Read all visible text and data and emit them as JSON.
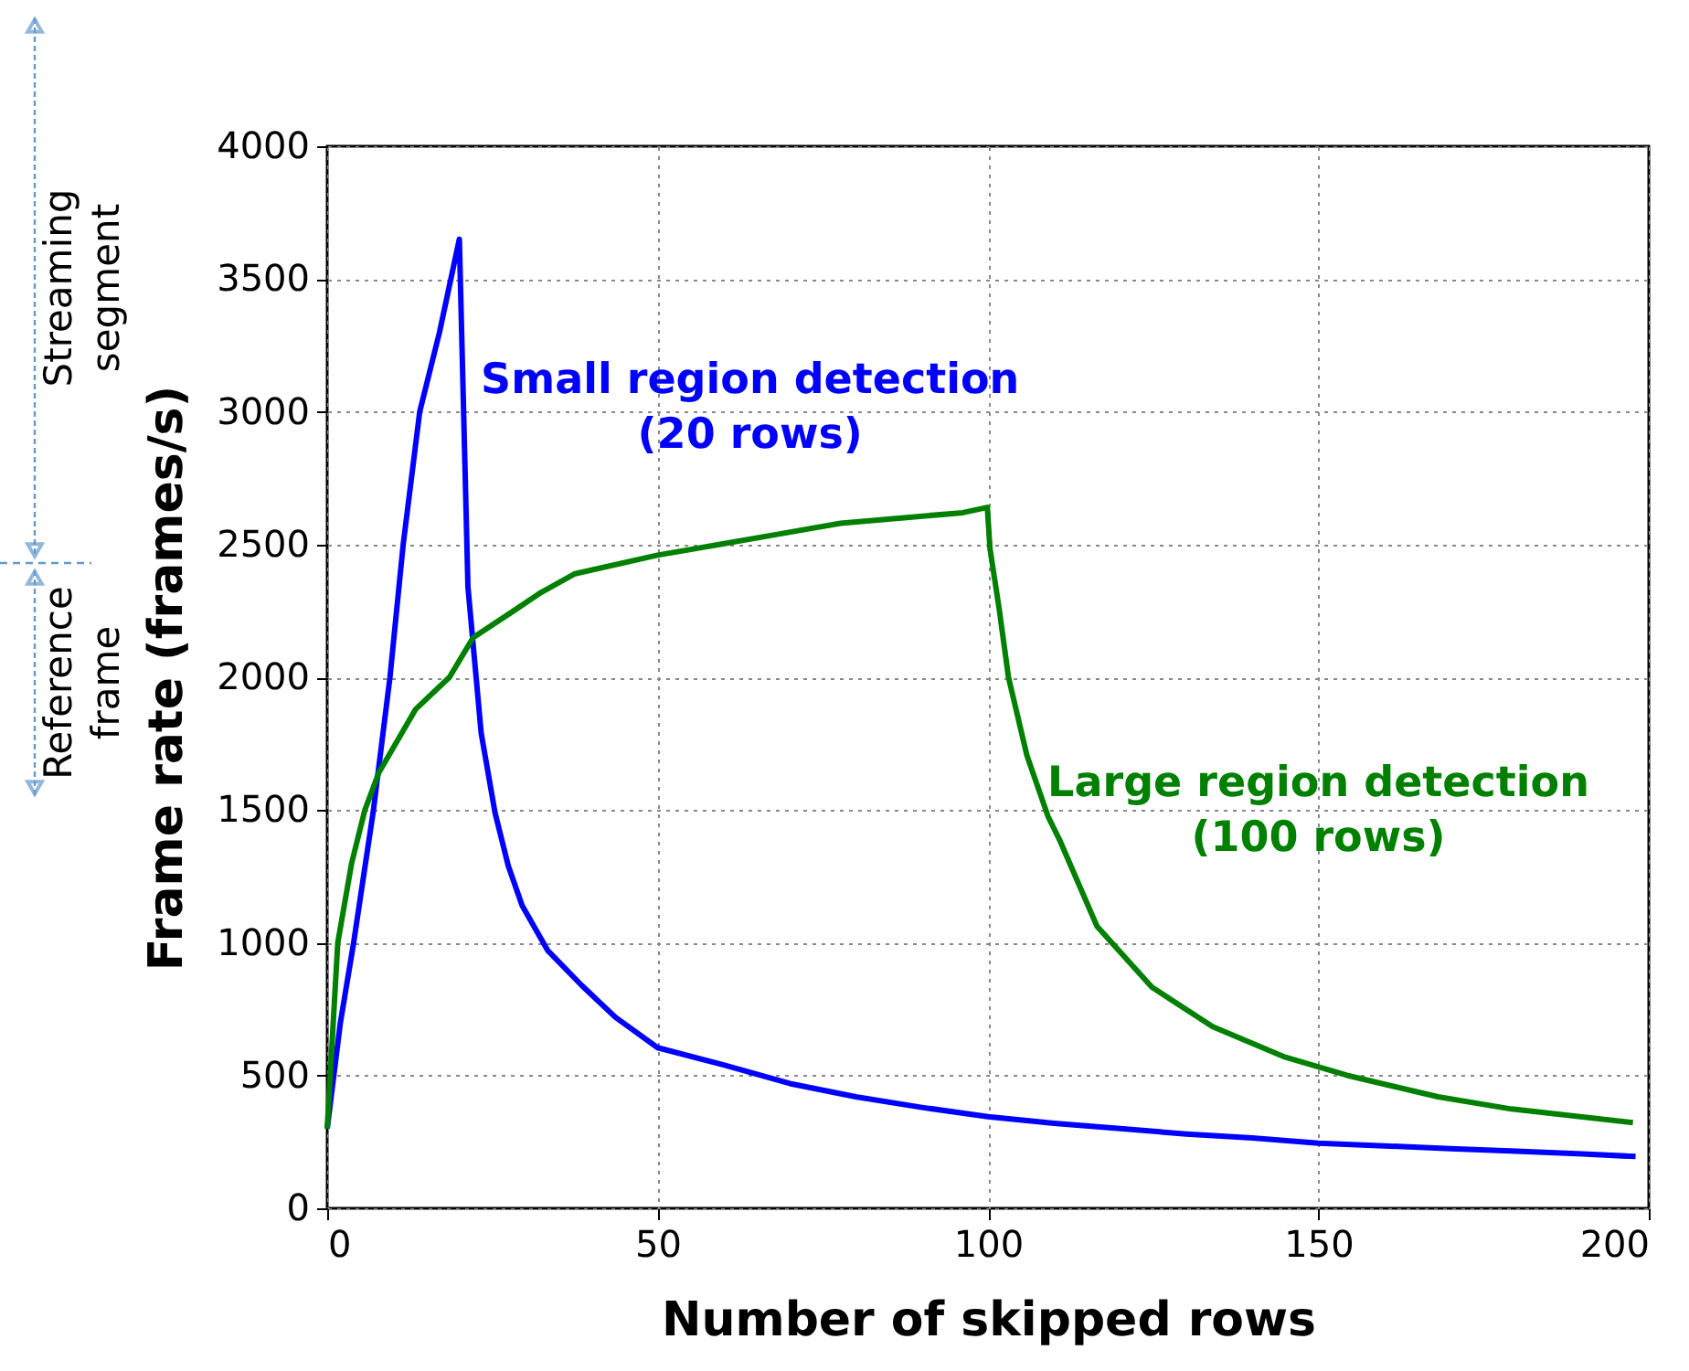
{
  "chart_data": {
    "type": "line",
    "xlabel": "Number of skipped rows",
    "ylabel": "Frame rate (frames/s)",
    "xlim": [
      0,
      200
    ],
    "xticks": [
      0,
      50,
      100,
      150,
      200
    ],
    "ylim": [
      0,
      4000
    ],
    "yticks": [
      0,
      500,
      1000,
      1500,
      2000,
      2500,
      3000,
      3500,
      4000
    ],
    "grid": true,
    "legend": false,
    "line_style": "solid",
    "marker": "none",
    "annotations": [
      "Streaming segment",
      "Reference frame"
    ],
    "series": [
      {
        "name": "Small region detection\n(20 rows)",
        "color": "#0000ff",
        "x": [
          0,
          2,
          4,
          7,
          9.5,
          11.5,
          14,
          17,
          20,
          21.3,
          23.3,
          25.4,
          27.4,
          29.5,
          33.4,
          38.5,
          43.6,
          50,
          60,
          70,
          80,
          90,
          100,
          110,
          120,
          130,
          140,
          150,
          160,
          170,
          180,
          190,
          198
        ],
        "values": [
          300,
          700,
          1000,
          1500,
          2000,
          2500,
          3000,
          3300,
          3650,
          2340,
          1790,
          1490,
          1290,
          1140,
          970,
          840,
          720,
          605,
          540,
          470,
          420,
          380,
          345,
          320,
          300,
          280,
          265,
          245,
          235,
          225,
          215,
          205,
          195
        ]
      },
      {
        "name": "Large region detection\n(100 rows)",
        "color": "#008000",
        "x": [
          0,
          1.6,
          3.7,
          5.7,
          7.8,
          13.4,
          18.5,
          22.1,
          28.2,
          32.4,
          37.5,
          50,
          59.3,
          68.5,
          77.7,
          86.9,
          96.2,
          99.9,
          100.3,
          101.7,
          103.1,
          105.9,
          109.1,
          110.9,
          116.5,
          124.8,
          134,
          145,
          154.3,
          168.1,
          179.2,
          197.6
        ],
        "values": [
          300,
          1000,
          1300,
          1500,
          1640,
          1880,
          2000,
          2150,
          2250,
          2320,
          2390,
          2460,
          2500,
          2540,
          2580,
          2600,
          2620,
          2640,
          2485,
          2256,
          2000,
          1705,
          1475,
          1384,
          1062,
          833,
          684,
          569,
          501,
          420,
          374,
          323
        ]
      }
    ]
  }
}
